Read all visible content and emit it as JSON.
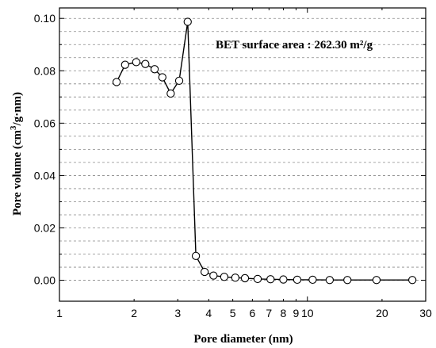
{
  "chart_data": {
    "type": "line",
    "title": "",
    "xlabel": "Pore diameter (nm)",
    "ylabel": {
      "prefix": "Pore volume (cm",
      "superscript": "3",
      "suffix": "/g·nm)"
    },
    "annotation": "BET surface area : 262.30 m²/g",
    "x_scale": "log",
    "xlim": [
      1,
      30
    ],
    "ylim": [
      -0.008,
      0.104
    ],
    "x_ticks": [
      1,
      2,
      3,
      4,
      5,
      6,
      7,
      8,
      9,
      10,
      20,
      30
    ],
    "x_tick_labels": [
      "1",
      "2",
      "3",
      "4",
      "5",
      "6",
      "7",
      "8",
      "9",
      "10",
      "20",
      "30"
    ],
    "y_ticks": [
      0.0,
      0.02,
      0.04,
      0.06,
      0.08,
      0.1
    ],
    "y_tick_labels": [
      "0.00",
      "0.02",
      "0.04",
      "0.06",
      "0.08",
      "0.10"
    ],
    "grid": "horizontal dashed",
    "marker": "open circle",
    "line_color": "#000000",
    "series": [
      {
        "x": [
          1.7,
          1.84,
          2.04,
          2.22,
          2.42,
          2.6,
          2.81,
          3.04,
          3.29,
          3.55,
          3.85,
          4.18,
          4.62,
          5.12,
          5.6,
          6.3,
          7.1,
          8.0,
          9.1,
          10.5,
          12.3,
          14.5,
          19.0,
          26.5
        ],
        "y": [
          0.0757,
          0.0823,
          0.0833,
          0.0826,
          0.0806,
          0.0775,
          0.0713,
          0.0762,
          0.0987,
          0.0093,
          0.0032,
          0.0018,
          0.0013,
          0.001,
          0.0008,
          0.0005,
          0.0004,
          0.0003,
          0.0002,
          0.0002,
          0.0001,
          0.0001,
          0.0001,
          0.0001
        ]
      }
    ]
  }
}
